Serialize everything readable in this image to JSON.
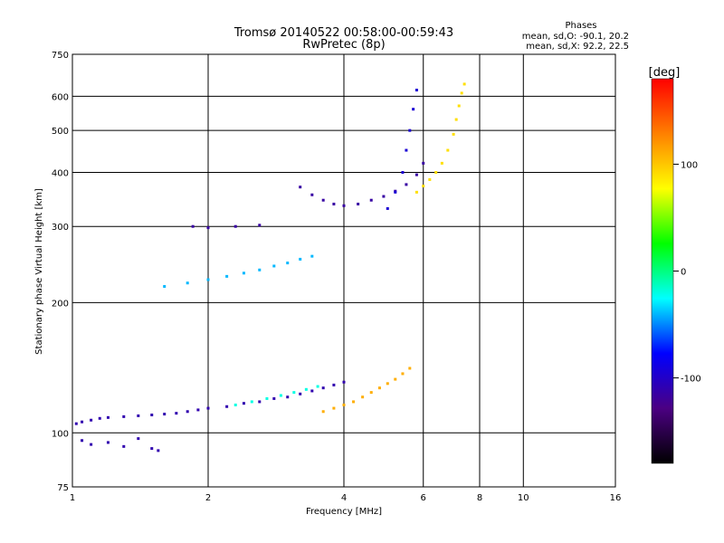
{
  "chart_data": {
    "type": "scatter",
    "title": "Tromsø 20140522 00:58:00-00:59:43",
    "subtitle": "RwPretec (8p)",
    "xlabel": "Frequency [MHz]",
    "ylabel": "Stationary phase Virtual Height [km]",
    "x_scale": "log",
    "y_scale": "log",
    "xlim": [
      1,
      16
    ],
    "ylim": [
      75,
      750
    ],
    "x_ticks": [
      "1",
      "2",
      "4",
      "6",
      "8",
      "10",
      "16"
    ],
    "y_ticks": [
      "75",
      "100",
      "200",
      "300",
      "400",
      "500",
      "600",
      "750"
    ],
    "x_gridlines": [
      2,
      4,
      6,
      8,
      10
    ],
    "y_gridlines": [
      100,
      200,
      300,
      400,
      500,
      600
    ],
    "info_box": {
      "title": "Phases",
      "line_o": "mean, sd,O: -90.1, 20.2",
      "line_x": "mean, sd,X:  92.2, 22.5"
    },
    "colorbar": {
      "label": "[deg]",
      "range": [
        -180,
        180
      ],
      "ticks": [
        "100",
        "0",
        "-100"
      ],
      "colors": [
        "#ff0000",
        "#ff8000",
        "#ffff00",
        "#00ff00",
        "#00ffff",
        "#0000ff",
        "#4b0082",
        "#000000"
      ]
    },
    "series": [
      {
        "name": "trace-low",
        "points": [
          [
            1.02,
            105
          ],
          [
            1.05,
            106
          ],
          [
            1.1,
            107
          ],
          [
            1.15,
            108
          ],
          [
            1.2,
            108.5
          ],
          [
            1.3,
            109
          ],
          [
            1.4,
            109.5
          ],
          [
            1.5,
            110
          ],
          [
            1.6,
            110.5
          ],
          [
            1.7,
            111
          ],
          [
            1.8,
            112
          ],
          [
            1.9,
            113
          ],
          [
            2.0,
            114
          ],
          [
            2.2,
            115
          ],
          [
            2.4,
            117
          ],
          [
            2.6,
            118
          ],
          [
            2.8,
            120
          ],
          [
            3.0,
            121
          ],
          [
            3.2,
            123
          ],
          [
            3.4,
            125
          ],
          [
            3.6,
            127
          ],
          [
            3.8,
            129
          ],
          [
            4.0,
            131
          ]
        ],
        "phase": -110
      },
      {
        "name": "trace-cyan",
        "points": [
          [
            2.3,
            116
          ],
          [
            2.5,
            118
          ],
          [
            2.7,
            120
          ],
          [
            2.9,
            122
          ],
          [
            3.1,
            124
          ],
          [
            3.3,
            126
          ],
          [
            3.5,
            128
          ]
        ],
        "phase": -20
      },
      {
        "name": "trace-yellow",
        "points": [
          [
            3.6,
            112
          ],
          [
            3.8,
            114
          ],
          [
            4.0,
            116
          ],
          [
            4.2,
            118
          ],
          [
            4.4,
            121
          ],
          [
            4.6,
            124
          ],
          [
            4.8,
            127
          ],
          [
            5.0,
            130
          ],
          [
            5.2,
            133
          ],
          [
            5.4,
            137
          ],
          [
            5.6,
            141
          ]
        ],
        "phase": 110
      },
      {
        "name": "trace-f1",
        "points": [
          [
            1.6,
            218
          ],
          [
            1.8,
            222
          ],
          [
            2.0,
            226
          ],
          [
            2.2,
            230
          ],
          [
            2.4,
            234
          ],
          [
            2.6,
            238
          ],
          [
            2.8,
            243
          ],
          [
            3.0,
            247
          ],
          [
            3.2,
            252
          ],
          [
            3.4,
            256
          ]
        ],
        "phase": -40
      },
      {
        "name": "trace-f2",
        "points": [
          [
            1.85,
            300
          ],
          [
            2.0,
            298
          ],
          [
            2.3,
            300
          ],
          [
            2.6,
            302
          ],
          [
            3.2,
            370
          ],
          [
            3.4,
            355
          ],
          [
            3.6,
            345
          ],
          [
            3.8,
            338
          ],
          [
            4.0,
            335
          ],
          [
            4.3,
            338
          ],
          [
            4.6,
            345
          ],
          [
            4.9,
            352
          ],
          [
            5.2,
            362
          ],
          [
            5.5,
            375
          ],
          [
            5.8,
            395
          ],
          [
            6.0,
            420
          ]
        ],
        "phase": -115
      },
      {
        "name": "trace-f2x",
        "points": [
          [
            5.8,
            360
          ],
          [
            6.0,
            372
          ],
          [
            6.2,
            385
          ],
          [
            6.4,
            400
          ],
          [
            6.6,
            420
          ],
          [
            6.8,
            450
          ],
          [
            7.0,
            490
          ],
          [
            7.1,
            530
          ],
          [
            7.2,
            570
          ],
          [
            7.3,
            610
          ],
          [
            7.4,
            640
          ]
        ],
        "phase": 90
      },
      {
        "name": "trace-f2o",
        "points": [
          [
            5.0,
            330
          ],
          [
            5.2,
            360
          ],
          [
            5.4,
            400
          ],
          [
            5.5,
            450
          ],
          [
            5.6,
            500
          ],
          [
            5.7,
            560
          ],
          [
            5.8,
            620
          ]
        ],
        "phase": -95
      },
      {
        "name": "scatter-low",
        "points": [
          [
            1.05,
            96
          ],
          [
            1.1,
            94
          ],
          [
            1.2,
            95
          ],
          [
            1.3,
            93
          ],
          [
            1.5,
            92
          ],
          [
            1.55,
            91
          ],
          [
            1.4,
            97
          ]
        ],
        "phase": -110
      }
    ]
  }
}
